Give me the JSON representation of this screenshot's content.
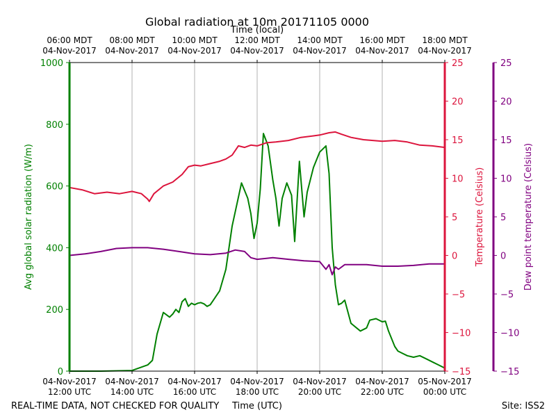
{
  "chart_data": {
    "type": "line",
    "title": "Global radiation at 10m 20171105 0000",
    "top_axis_label": "Time (local)",
    "xlabel": "Time (UTC)",
    "footer_left": "REAL-TIME DATA, NOT CHECKED FOR QUALITY",
    "footer_right": "Site: ISS2",
    "x_range_hours_utc": [
      12,
      24
    ],
    "x_ticks_bottom": [
      {
        "hour": 12,
        "line1": "04-Nov-2017",
        "line2": "12:00 UTC"
      },
      {
        "hour": 14,
        "line1": "04-Nov-2017",
        "line2": "14:00 UTC"
      },
      {
        "hour": 16,
        "line1": "04-Nov-2017",
        "line2": "16:00 UTC"
      },
      {
        "hour": 18,
        "line1": "04-Nov-2017",
        "line2": "18:00 UTC"
      },
      {
        "hour": 20,
        "line1": "04-Nov-2017",
        "line2": "20:00 UTC"
      },
      {
        "hour": 22,
        "line1": "04-Nov-2017",
        "line2": "22:00 UTC"
      },
      {
        "hour": 24,
        "line1": "05-Nov-2017",
        "line2": "00:00 UTC"
      }
    ],
    "x_ticks_top": [
      {
        "hour": 12,
        "line1": "06:00 MDT",
        "line2": "04-Nov-2017"
      },
      {
        "hour": 14,
        "line1": "08:00 MDT",
        "line2": "04-Nov-2017"
      },
      {
        "hour": 16,
        "line1": "10:00 MDT",
        "line2": "04-Nov-2017"
      },
      {
        "hour": 18,
        "line1": "12:00 MDT",
        "line2": "04-Nov-2017"
      },
      {
        "hour": 20,
        "line1": "14:00 MDT",
        "line2": "04-Nov-2017"
      },
      {
        "hour": 22,
        "line1": "16:00 MDT",
        "line2": "04-Nov-2017"
      },
      {
        "hour": 24,
        "line1": "18:00 MDT",
        "line2": "04-Nov-2017"
      }
    ],
    "grid_x": true,
    "axes": {
      "radiation": {
        "label": "Avg global solar radiation (W/m)",
        "range": [
          0,
          1000
        ],
        "ticks": [
          0,
          200,
          400,
          600,
          800,
          1000
        ],
        "color": "#008000"
      },
      "temperature": {
        "label": "Temperature (Celsius)",
        "range": [
          -15,
          25
        ],
        "ticks": [
          -15,
          -10,
          -5,
          0,
          5,
          10,
          15,
          20,
          25
        ],
        "color": "#dc143c"
      },
      "dewpoint": {
        "label": "Dew point temperature (Celsius)",
        "range": [
          -15,
          25
        ],
        "ticks": [
          -15,
          -10,
          -5,
          0,
          5,
          10,
          15,
          20,
          25
        ],
        "color": "#800080"
      }
    },
    "series": [
      {
        "name": "Avg global solar radiation",
        "axis": "radiation",
        "color": "#008000",
        "x": [
          12.0,
          13.0,
          14.0,
          14.5,
          14.65,
          14.8,
          15.0,
          15.2,
          15.3,
          15.4,
          15.5,
          15.6,
          15.7,
          15.8,
          15.9,
          16.0,
          16.1,
          16.2,
          16.3,
          16.4,
          16.5,
          16.6,
          16.7,
          16.8,
          17.0,
          17.2,
          17.5,
          17.7,
          17.8,
          17.9,
          18.0,
          18.1,
          18.2,
          18.35,
          18.5,
          18.6,
          18.7,
          18.8,
          18.95,
          19.1,
          19.2,
          19.35,
          19.5,
          19.6,
          19.8,
          20.0,
          20.2,
          20.3,
          20.4,
          20.5,
          20.6,
          20.7,
          20.8,
          21.0,
          21.3,
          21.5,
          21.6,
          21.8,
          22.0,
          22.1,
          22.2,
          22.4,
          22.5,
          22.6,
          22.8,
          23.0,
          23.2,
          23.4,
          23.6,
          23.8,
          24.0
        ],
        "values": [
          0,
          0,
          2,
          20,
          35,
          120,
          190,
          175,
          185,
          200,
          190,
          225,
          235,
          210,
          220,
          215,
          220,
          222,
          218,
          210,
          215,
          230,
          245,
          260,
          330,
          470,
          610,
          560,
          510,
          430,
          480,
          590,
          770,
          730,
          620,
          560,
          470,
          560,
          610,
          570,
          420,
          680,
          500,
          580,
          660,
          710,
          730,
          640,
          400,
          280,
          215,
          220,
          230,
          155,
          130,
          140,
          165,
          170,
          160,
          162,
          130,
          80,
          65,
          60,
          50,
          45,
          50,
          40,
          30,
          20,
          10
        ]
      },
      {
        "name": "Temperature",
        "axis": "temperature",
        "color": "#dc143c",
        "x": [
          12.0,
          12.4,
          12.8,
          13.2,
          13.6,
          14.0,
          14.3,
          14.5,
          14.55,
          14.7,
          15.0,
          15.3,
          15.6,
          15.8,
          16.0,
          16.2,
          16.5,
          16.8,
          17.0,
          17.2,
          17.4,
          17.6,
          17.8,
          18.0,
          18.3,
          18.6,
          19.0,
          19.4,
          19.8,
          20.0,
          20.3,
          20.5,
          20.7,
          21.0,
          21.4,
          22.0,
          22.4,
          22.8,
          23.2,
          23.6,
          24.0
        ],
        "values": [
          8.8,
          8.5,
          8.0,
          8.2,
          8.0,
          8.3,
          8.0,
          7.3,
          7.0,
          8.0,
          9.0,
          9.5,
          10.5,
          11.5,
          11.7,
          11.6,
          11.9,
          12.2,
          12.5,
          13.0,
          14.2,
          14.0,
          14.3,
          14.2,
          14.6,
          14.7,
          14.9,
          15.3,
          15.5,
          15.6,
          15.9,
          16.0,
          15.7,
          15.3,
          15.0,
          14.8,
          14.9,
          14.7,
          14.3,
          14.2,
          14.0
        ]
      },
      {
        "name": "Dew point temperature",
        "axis": "dewpoint",
        "color": "#800080",
        "x": [
          12.0,
          12.5,
          13.0,
          13.5,
          14.0,
          14.5,
          15.0,
          15.5,
          16.0,
          16.5,
          17.0,
          17.3,
          17.6,
          17.8,
          18.0,
          18.5,
          19.0,
          19.5,
          20.0,
          20.2,
          20.3,
          20.4,
          20.5,
          20.6,
          20.8,
          21.0,
          21.5,
          22.0,
          22.5,
          23.0,
          23.5,
          24.0
        ],
        "values": [
          0.0,
          0.2,
          0.5,
          0.9,
          1.0,
          1.0,
          0.8,
          0.5,
          0.2,
          0.1,
          0.3,
          0.7,
          0.5,
          -0.3,
          -0.5,
          -0.3,
          -0.5,
          -0.7,
          -0.8,
          -1.8,
          -1.2,
          -2.5,
          -1.5,
          -1.8,
          -1.2,
          -1.2,
          -1.2,
          -1.4,
          -1.4,
          -1.3,
          -1.1,
          -1.1
        ]
      }
    ]
  }
}
